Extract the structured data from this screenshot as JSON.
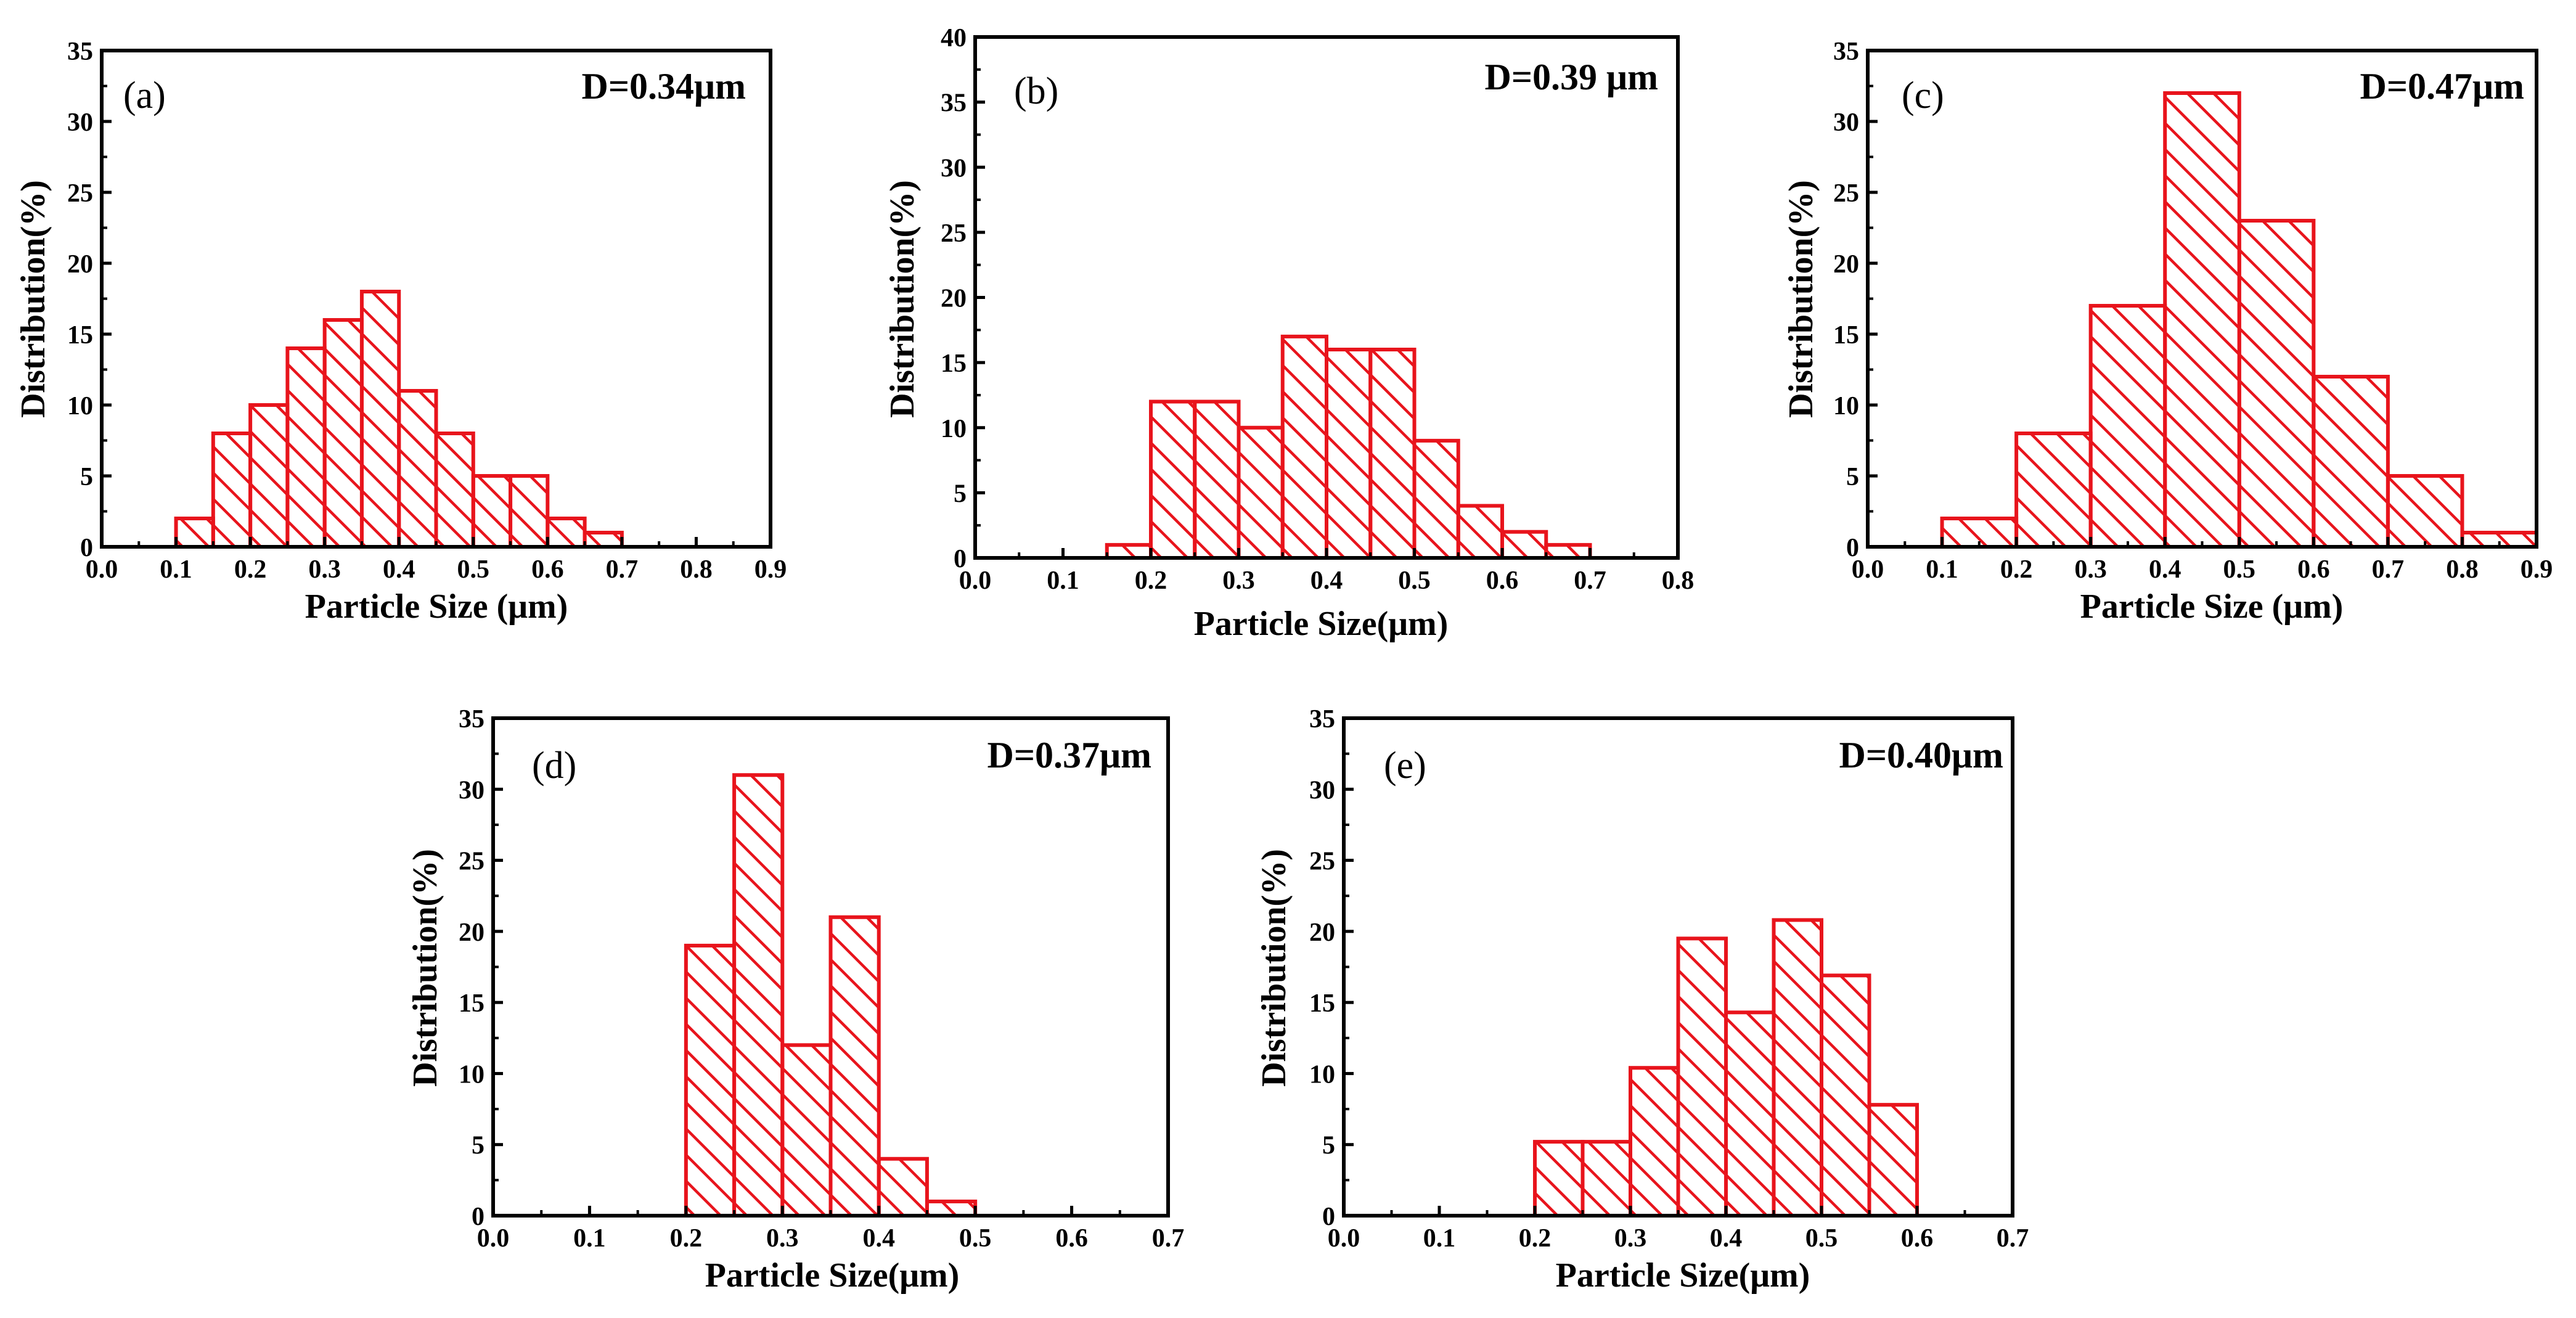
{
  "bar_color": "#e8141c",
  "charts": [
    {
      "type": "bar",
      "panel_label": "(a)",
      "d_label": "D=0.34μm",
      "xlabel": "Particle Size (μm)",
      "ylabel": "Distribution(%)",
      "xlim": [
        0,
        0.9
      ],
      "ylim": [
        0,
        35
      ],
      "x_ticks": [
        "0.0",
        "0.1",
        "0.2",
        "0.3",
        "0.4",
        "0.5",
        "0.6",
        "0.7",
        "0.8",
        "0.9"
      ],
      "y_ticks": [
        "0",
        "5",
        "10",
        "15",
        "20",
        "25",
        "30",
        "35"
      ],
      "bin_width": 0.05,
      "bins": [
        {
          "start": 0.1,
          "value": 2
        },
        {
          "start": 0.15,
          "value": 8
        },
        {
          "start": 0.2,
          "value": 10
        },
        {
          "start": 0.25,
          "value": 14
        },
        {
          "start": 0.3,
          "value": 16
        },
        {
          "start": 0.35,
          "value": 18
        },
        {
          "start": 0.4,
          "value": 11
        },
        {
          "start": 0.45,
          "value": 8
        },
        {
          "start": 0.5,
          "value": 5
        },
        {
          "start": 0.55,
          "value": 5
        },
        {
          "start": 0.6,
          "value": 2
        },
        {
          "start": 0.65,
          "value": 1
        }
      ]
    },
    {
      "type": "bar",
      "panel_label": "(b)",
      "d_label": "D=0.39 μm",
      "xlabel": "Particle Size(μm)",
      "ylabel": "Distribution(%)",
      "xlim": [
        0,
        0.8
      ],
      "ylim": [
        0,
        40
      ],
      "x_ticks": [
        "0.0",
        "0.1",
        "0.2",
        "0.3",
        "0.4",
        "0.5",
        "0.6",
        "0.7",
        "0.8"
      ],
      "y_ticks": [
        "0",
        "5",
        "10",
        "15",
        "20",
        "25",
        "30",
        "35",
        "40"
      ],
      "bin_width": 0.05,
      "bins": [
        {
          "start": 0.15,
          "value": 1
        },
        {
          "start": 0.2,
          "value": 12
        },
        {
          "start": 0.25,
          "value": 12
        },
        {
          "start": 0.3,
          "value": 10
        },
        {
          "start": 0.35,
          "value": 17
        },
        {
          "start": 0.4,
          "value": 16
        },
        {
          "start": 0.45,
          "value": 16
        },
        {
          "start": 0.5,
          "value": 9
        },
        {
          "start": 0.55,
          "value": 4
        },
        {
          "start": 0.6,
          "value": 2
        },
        {
          "start": 0.65,
          "value": 1
        }
      ]
    },
    {
      "type": "bar",
      "panel_label": "(c)",
      "d_label": "D=0.47μm",
      "xlabel": "Particle Size (μm)",
      "ylabel": "Distribution(%)",
      "xlim": [
        0,
        0.9
      ],
      "ylim": [
        0,
        35
      ],
      "x_ticks": [
        "0.0",
        "0.1",
        "0.2",
        "0.3",
        "0.4",
        "0.5",
        "0.6",
        "0.7",
        "0.8",
        "0.9"
      ],
      "y_ticks": [
        "0",
        "5",
        "10",
        "15",
        "20",
        "25",
        "30",
        "35"
      ],
      "bin_width": 0.1,
      "bins": [
        {
          "start": 0.1,
          "value": 2
        },
        {
          "start": 0.2,
          "value": 8
        },
        {
          "start": 0.3,
          "value": 17
        },
        {
          "start": 0.4,
          "value": 32
        },
        {
          "start": 0.5,
          "value": 23
        },
        {
          "start": 0.6,
          "value": 12
        },
        {
          "start": 0.7,
          "value": 5
        },
        {
          "start": 0.8,
          "value": 1
        }
      ]
    },
    {
      "type": "bar",
      "panel_label": "(d)",
      "d_label": "D=0.37μm",
      "xlabel": "Particle Size(μm)",
      "ylabel": "Distribution(%)",
      "xlim": [
        0,
        0.7
      ],
      "ylim": [
        0,
        35
      ],
      "x_ticks": [
        "0.0",
        "0.1",
        "0.2",
        "0.3",
        "0.4",
        "0.5",
        "0.6",
        "0.7"
      ],
      "y_ticks": [
        "0",
        "5",
        "10",
        "15",
        "20",
        "25",
        "30",
        "35"
      ],
      "bin_width": 0.05,
      "bins": [
        {
          "start": 0.2,
          "value": 19
        },
        {
          "start": 0.25,
          "value": 31
        },
        {
          "start": 0.3,
          "value": 12
        },
        {
          "start": 0.35,
          "value": 21
        },
        {
          "start": 0.4,
          "value": 4
        },
        {
          "start": 0.45,
          "value": 1
        }
      ]
    },
    {
      "type": "bar",
      "panel_label": "(e)",
      "d_label": "D=0.40μm",
      "xlabel": "Particle Size(μm)",
      "ylabel": "Distribution(%)",
      "xlim": [
        0,
        0.7
      ],
      "ylim": [
        0,
        35
      ],
      "x_ticks": [
        "0.0",
        "0.1",
        "0.2",
        "0.3",
        "0.4",
        "0.5",
        "0.6",
        "0.7"
      ],
      "y_ticks": [
        "0",
        "5",
        "10",
        "15",
        "20",
        "25",
        "30",
        "35"
      ],
      "bin_width": 0.05,
      "bins": [
        {
          "start": 0.2,
          "value": 5.2
        },
        {
          "start": 0.25,
          "value": 5.2
        },
        {
          "start": 0.3,
          "value": 10.4
        },
        {
          "start": 0.35,
          "value": 19.5
        },
        {
          "start": 0.4,
          "value": 14.3
        },
        {
          "start": 0.45,
          "value": 20.8
        },
        {
          "start": 0.5,
          "value": 16.9
        },
        {
          "start": 0.55,
          "value": 7.8
        }
      ]
    }
  ]
}
